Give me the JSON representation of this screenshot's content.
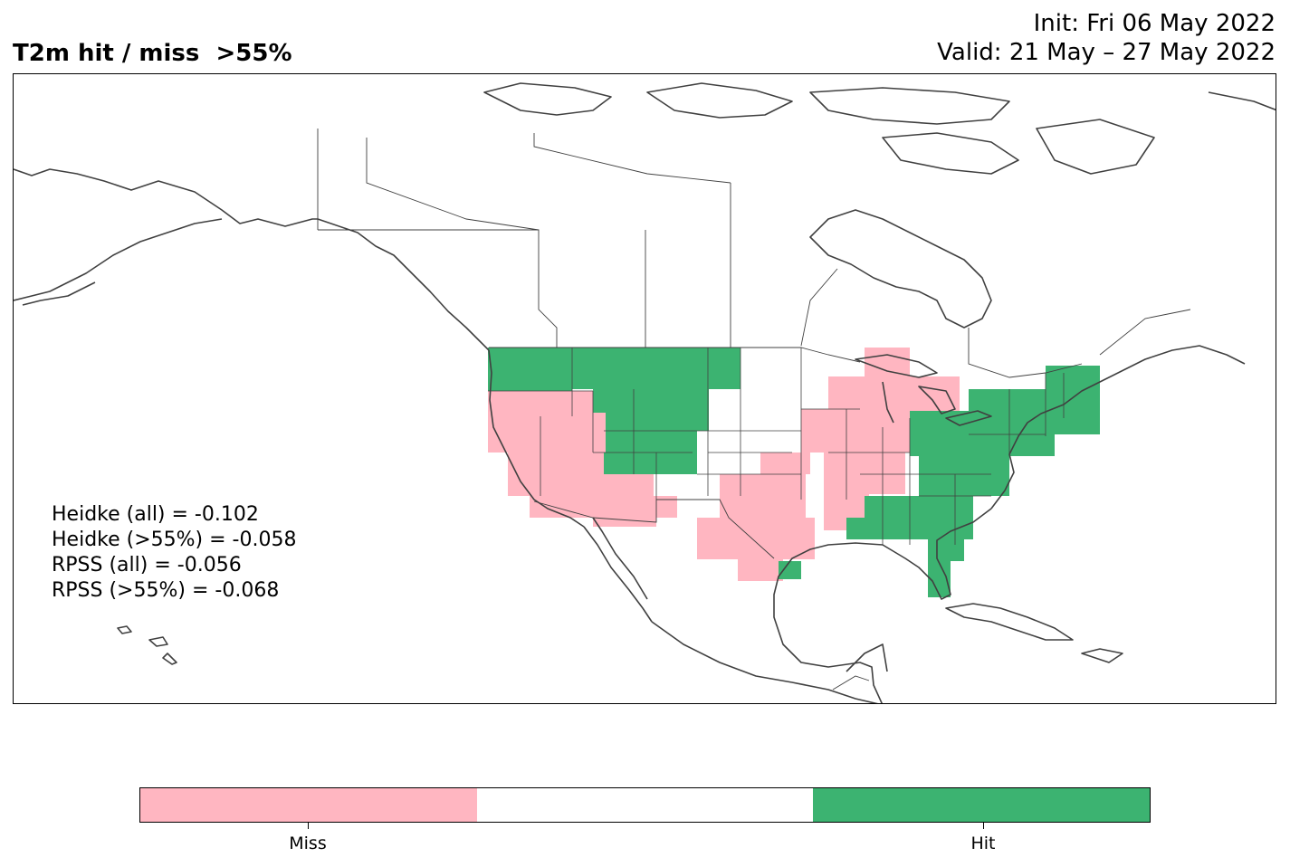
{
  "title": "T2m hit / miss  >55%",
  "init_line": "Init: Fri 06 May 2022",
  "valid_line": "Valid: 21 May – 27 May 2022",
  "scores": [
    "Heidke (all) = -0.102",
    "Heidke (>55%) = -0.058",
    "RPSS (all) = -0.056",
    "RPSS (>55%) = -0.068"
  ],
  "colors": {
    "miss": "#ffb6c1",
    "neutral": "#ffffff",
    "hit": "#3cb371",
    "coast": "#404040"
  },
  "colorbar": {
    "labels": [
      "Miss",
      "Hit"
    ]
  }
}
